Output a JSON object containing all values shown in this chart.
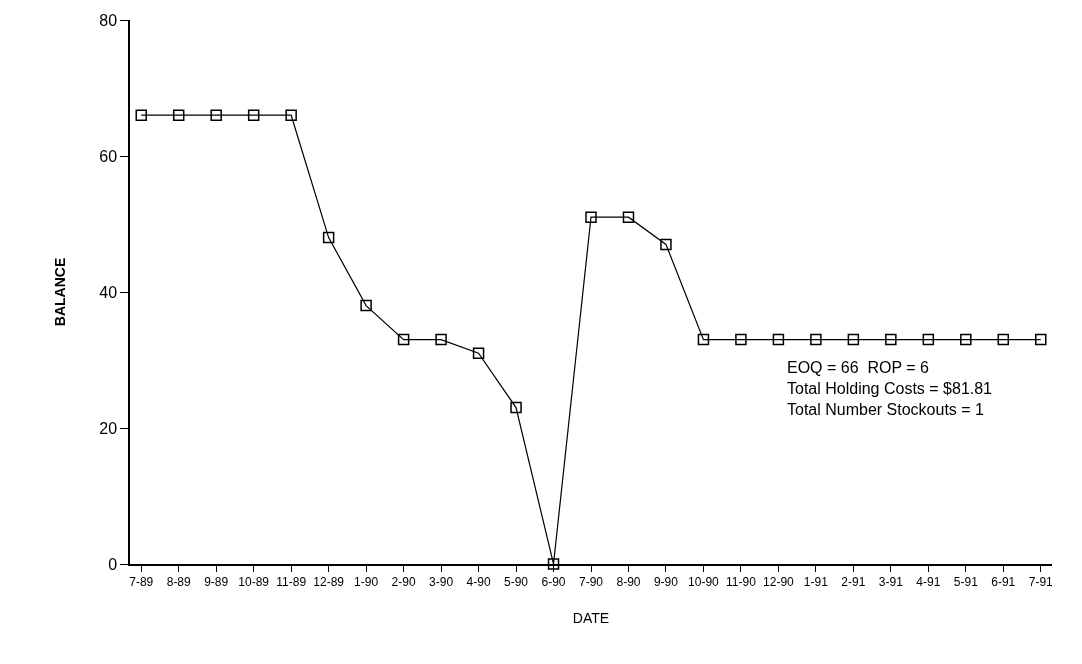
{
  "chart_data": {
    "type": "line",
    "xlabel": "DATE",
    "ylabel": "BALANCE",
    "categories": [
      "7-89",
      "8-89",
      "9-89",
      "10-89",
      "11-89",
      "12-89",
      "1-90",
      "2-90",
      "3-90",
      "4-90",
      "5-90",
      "6-90",
      "7-90",
      "8-90",
      "9-90",
      "10-90",
      "11-90",
      "12-90",
      "1-91",
      "2-91",
      "3-91",
      "4-91",
      "5-91",
      "6-91",
      "7-91"
    ],
    "series": [
      {
        "color": "#000000",
        "values": [
          66,
          66,
          66,
          66,
          66,
          48,
          38,
          33,
          33,
          31,
          23,
          0,
          51,
          51,
          47,
          33,
          33,
          33,
          33,
          33,
          33,
          33,
          33,
          33,
          33
        ]
      }
    ],
    "ylim": [
      0,
      80
    ],
    "yticks": [
      0,
      20,
      40,
      60,
      80
    ],
    "grid": false,
    "marker": "square",
    "line_style": "solid",
    "annotations": [
      "EOQ = 66  ROP = 6",
      "Total Holding Costs = $81.81",
      "Total Number Stockouts = 1"
    ]
  }
}
